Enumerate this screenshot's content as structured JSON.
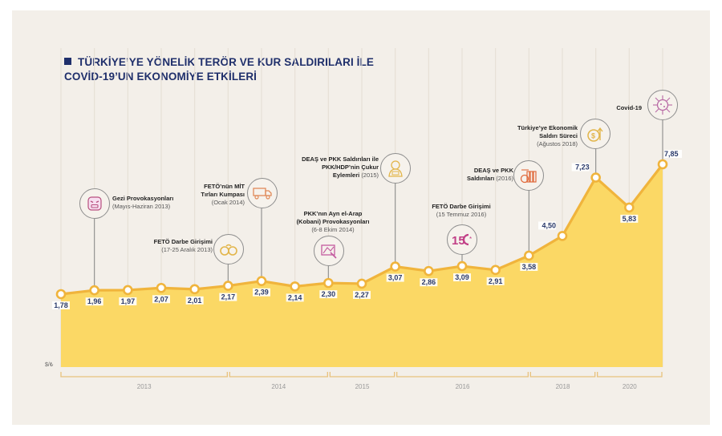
{
  "title": {
    "line1": "TÜRKİYE’YE YÖNELİK TERÖR VE KUR SALDIRILARI İLE",
    "line2": "COVİD-19’UN EKONOMİYE ETKİLERİ"
  },
  "colors": {
    "background": "#f3efe9",
    "title": "#1f2f6b",
    "line": "#f0b43c",
    "area": "#fbd865",
    "bracket": "#e8c27d"
  },
  "chart_data": {
    "type": "area",
    "title": "TÜRKİYE’YE YÖNELİK TERÖR VE KUR SALDIRILARI İLE COVİD-19’UN EKONOMİYE ETKİLERİ",
    "ylabel": "$/₺",
    "xlabel": "",
    "ylim": [
      0,
      8.5
    ],
    "grid": "vertical",
    "values": [
      1.78,
      1.96,
      1.97,
      2.07,
      2.01,
      2.17,
      2.39,
      2.14,
      2.3,
      2.27,
      3.07,
      2.86,
      3.09,
      2.91,
      3.58,
      4.5,
      7.23,
      5.83,
      7.85
    ],
    "value_labels": [
      "1,78",
      "1,96",
      "1,97",
      "2,07",
      "2,01",
      "2,17",
      "2,39",
      "2,14",
      "2,30",
      "2,27",
      "3,07",
      "2,86",
      "3,09",
      "2,91",
      "3,58",
      "4,50",
      "7,23",
      "5,83",
      "7,85"
    ],
    "year_groups": [
      {
        "label": "2013",
        "from": 0,
        "to": 5
      },
      {
        "label": "2014",
        "from": 5,
        "to": 8
      },
      {
        "label": "2015",
        "from": 8,
        "to": 10
      },
      {
        "label": "2016",
        "from": 10,
        "to": 14
      },
      {
        "label": "2018",
        "from": 14,
        "to": 16
      },
      {
        "label": "2020",
        "from": 16,
        "to": 18
      }
    ],
    "annotations": [
      {
        "index": 1,
        "icon": "angry-face-icon",
        "title": "Gezi Provokasyonları",
        "sub": "(Mayıs-Haziran 2013)"
      },
      {
        "index": 5,
        "icon": "handcuffs-icon",
        "title": "FETÖ Darbe Girişimi",
        "sub": "(17-25 Aralık 2013)"
      },
      {
        "index": 6,
        "icon": "truck-icon",
        "title": "FETÖ’nün MİT Tırları Kumpası",
        "sub": "(Ocak 2014)"
      },
      {
        "index": 8,
        "icon": "map-pin-icon",
        "title": "PKK’nın Ayn el-Arap (Kobani) Provokasyonları",
        "sub": "(6-8 Ekim 2014)"
      },
      {
        "index": 10,
        "icon": "militant-icon",
        "title": "DEAŞ ve PKK Saldırıları ile PKK/HDP’nin Çukur Eylemleri",
        "sub": "(2015)"
      },
      {
        "index": 12,
        "icon": "july-15-icon",
        "title": "FETÖ Darbe Girişimi",
        "sub": "(15 Temmuz 2016)"
      },
      {
        "index": 14,
        "icon": "bomb-icon",
        "title": "DEAŞ ve PKK Saldırıları",
        "sub": "(2016)"
      },
      {
        "index": 16,
        "icon": "dollar-coin-icon",
        "title": "Türkiye’ye Ekonomik Saldırı Süreci",
        "sub": "(Ağustos 2018)"
      },
      {
        "index": 18,
        "icon": "virus-icon",
        "title": "Covid-19",
        "sub": ""
      }
    ]
  },
  "annotations_text": {
    "gezi": {
      "t1": "Gezi Provokasyonları",
      "s": "(Mayıs-Haziran 2013)"
    },
    "feto2013": {
      "t1": "FETÖ Darbe Girişimi",
      "s": "(17-25 Aralık 2013)"
    },
    "mit": {
      "t1": "FETÖ’nün MİT",
      "t2": "Tırları Kumpası",
      "s": "(Ocak 2014)"
    },
    "kobani": {
      "t1": "PKK’nın Ayn el-Arap",
      "t2": "(Kobani) Provokasyonları",
      "s": "(6-8 Ekim 2014)"
    },
    "deas2015": {
      "t1": "DEAŞ ve PKK Saldırıları ile",
      "t2": "PKK/HDP’nin Çukur",
      "t3": "Eylemleri",
      "s": "(2015)"
    },
    "feto2016": {
      "t1": "FETÖ Darbe Girişimi",
      "s": "(15 Temmuz 2016)"
    },
    "deas2016": {
      "t1": "DEAŞ ve PKK",
      "t2": "Saldırıları",
      "s": "(2016)"
    },
    "econ": {
      "t1": "Türkiye’ye Ekonomik",
      "t2": "Saldırı Süreci",
      "s": "(Ağustos 2018)"
    },
    "covid": {
      "t1": "Covid-19"
    }
  }
}
